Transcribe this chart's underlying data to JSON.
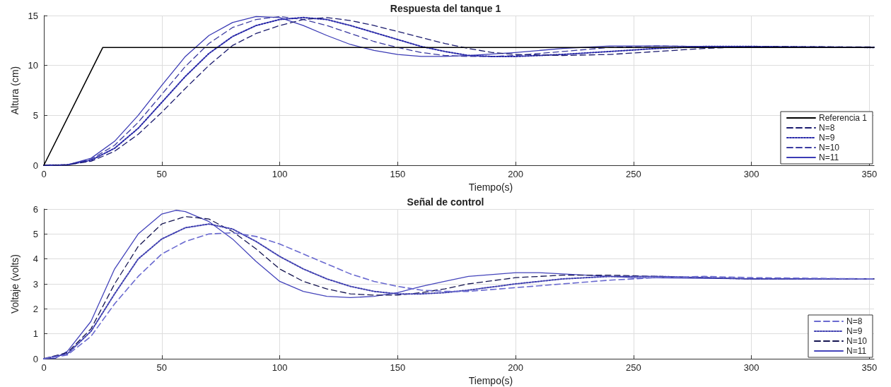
{
  "chart_data": [
    {
      "type": "line",
      "title": "Respuesta del tanque 1",
      "xlabel": "Tiempo(s)",
      "ylabel": "Altura (cm)",
      "xlim": [
        0,
        352
      ],
      "xticks": [
        0,
        50,
        100,
        150,
        200,
        250,
        300,
        350
      ],
      "ylim": [
        0,
        15
      ],
      "yticks": [
        0,
        5,
        10,
        15
      ],
      "grid": true,
      "legend": "bottom right",
      "marker": "none",
      "series": [
        {
          "name": "Referencia 1",
          "color": "#000000",
          "line_style": "solid",
          "x": [
            0,
            25,
            352
          ],
          "values": [
            0,
            11.8,
            11.8
          ]
        },
        {
          "name": "N=8",
          "color": "#1a1a6e",
          "line_style": "dashed",
          "x": [
            0,
            10,
            20,
            30,
            40,
            50,
            60,
            70,
            80,
            90,
            100,
            110,
            120,
            130,
            140,
            150,
            160,
            170,
            180,
            190,
            200,
            220,
            240,
            260,
            280,
            300,
            352
          ],
          "values": [
            0,
            0.03,
            0.4,
            1.4,
            3.1,
            5.3,
            7.7,
            10.0,
            12.0,
            13.2,
            14.0,
            14.6,
            14.8,
            14.5,
            14.0,
            13.4,
            12.8,
            12.2,
            11.7,
            11.3,
            11.1,
            11.0,
            11.1,
            11.4,
            11.7,
            11.9,
            11.85
          ]
        },
        {
          "name": "N=9",
          "color": "#2828a8",
          "line_style": "dotted",
          "x": [
            0,
            10,
            20,
            30,
            40,
            50,
            60,
            70,
            80,
            90,
            100,
            110,
            120,
            130,
            140,
            150,
            160,
            170,
            180,
            190,
            200,
            220,
            240,
            260,
            280,
            300,
            352
          ],
          "values": [
            0,
            0.04,
            0.5,
            1.7,
            3.7,
            6.3,
            8.9,
            11.2,
            12.9,
            14.0,
            14.6,
            14.8,
            14.6,
            14.0,
            13.3,
            12.6,
            11.9,
            11.4,
            11.0,
            10.9,
            10.9,
            11.1,
            11.4,
            11.7,
            11.9,
            11.9,
            11.8
          ]
        },
        {
          "name": "N=10",
          "color": "#3a3aa0",
          "line_style": "dashed",
          "x": [
            0,
            10,
            20,
            30,
            40,
            50,
            60,
            70,
            80,
            90,
            100,
            110,
            120,
            130,
            140,
            150,
            160,
            170,
            180,
            190,
            200,
            220,
            240,
            260,
            280,
            300,
            352
          ],
          "values": [
            0,
            0.05,
            0.6,
            2.0,
            4.3,
            7.1,
            9.9,
            12.2,
            13.8,
            14.6,
            14.9,
            14.6,
            14.0,
            13.2,
            12.4,
            11.8,
            11.3,
            11.0,
            10.9,
            10.9,
            11.0,
            11.4,
            11.8,
            11.95,
            11.9,
            11.85,
            11.8
          ]
        },
        {
          "name": "N=11",
          "color": "#3b3bb5",
          "line_style": "solid",
          "x": [
            0,
            10,
            20,
            30,
            40,
            50,
            60,
            70,
            80,
            90,
            100,
            110,
            120,
            130,
            140,
            150,
            160,
            170,
            180,
            200,
            220,
            240,
            260,
            280,
            300,
            352
          ],
          "values": [
            0,
            0.05,
            0.7,
            2.4,
            5.0,
            8.0,
            10.9,
            13.0,
            14.3,
            14.9,
            14.8,
            14.0,
            13.0,
            12.1,
            11.5,
            11.1,
            10.9,
            10.9,
            11.0,
            11.3,
            11.7,
            11.95,
            11.95,
            11.9,
            11.85,
            11.8
          ]
        }
      ]
    },
    {
      "type": "line",
      "title": "Señal de control",
      "xlabel": "Tiempo(s)",
      "ylabel": "Voltaje (volts)",
      "xlim": [
        0,
        352
      ],
      "xticks": [
        0,
        50,
        100,
        150,
        200,
        250,
        300,
        350
      ],
      "ylim": [
        0,
        6
      ],
      "yticks": [
        0,
        1,
        2,
        3,
        4,
        5,
        6
      ],
      "grid": true,
      "legend": "bottom right",
      "marker": "none",
      "series": [
        {
          "name": "N=8",
          "color": "#6a6ad0",
          "line_style": "dashed",
          "x": [
            0,
            10,
            20,
            30,
            40,
            50,
            60,
            70,
            80,
            90,
            100,
            110,
            120,
            130,
            140,
            150,
            160,
            170,
            180,
            200,
            220,
            240,
            260,
            280,
            300,
            352
          ],
          "values": [
            0,
            0.15,
            0.9,
            2.2,
            3.3,
            4.2,
            4.7,
            5.0,
            5.05,
            4.9,
            4.6,
            4.2,
            3.8,
            3.4,
            3.1,
            2.9,
            2.75,
            2.7,
            2.7,
            2.85,
            3.0,
            3.15,
            3.25,
            3.3,
            3.25,
            3.2
          ]
        },
        {
          "name": "N=9",
          "color": "#4040b0",
          "line_style": "dotted",
          "x": [
            0,
            10,
            20,
            30,
            40,
            50,
            60,
            70,
            80,
            90,
            100,
            110,
            120,
            130,
            140,
            150,
            160,
            170,
            180,
            200,
            220,
            240,
            260,
            300,
            352
          ],
          "values": [
            0,
            0.2,
            1.1,
            2.6,
            4.0,
            4.8,
            5.25,
            5.4,
            5.2,
            4.7,
            4.1,
            3.6,
            3.2,
            2.9,
            2.7,
            2.6,
            2.6,
            2.65,
            2.75,
            3.0,
            3.2,
            3.3,
            3.3,
            3.2,
            3.2
          ]
        },
        {
          "name": "N=10",
          "color": "#141450",
          "line_style": "dashed",
          "x": [
            0,
            10,
            20,
            30,
            40,
            50,
            60,
            70,
            80,
            90,
            100,
            110,
            120,
            130,
            140,
            150,
            160,
            170,
            180,
            200,
            220,
            240,
            260,
            300,
            352
          ],
          "values": [
            0,
            0.25,
            1.2,
            3.0,
            4.5,
            5.4,
            5.7,
            5.6,
            5.1,
            4.4,
            3.6,
            3.1,
            2.8,
            2.6,
            2.55,
            2.55,
            2.65,
            2.8,
            3.0,
            3.25,
            3.35,
            3.35,
            3.3,
            3.2,
            3.2
          ]
        },
        {
          "name": "N=11",
          "color": "#4444bb",
          "line_style": "solid",
          "x": [
            0,
            5,
            10,
            20,
            30,
            40,
            50,
            56,
            60,
            70,
            80,
            90,
            100,
            110,
            120,
            130,
            140,
            150,
            160,
            170,
            180,
            200,
            210,
            230,
            250,
            300,
            352
          ],
          "values": [
            0,
            0.02,
            0.3,
            1.5,
            3.6,
            5.0,
            5.8,
            5.95,
            5.9,
            5.5,
            4.8,
            3.9,
            3.1,
            2.7,
            2.5,
            2.45,
            2.5,
            2.65,
            2.9,
            3.1,
            3.3,
            3.45,
            3.45,
            3.35,
            3.25,
            3.2,
            3.2
          ]
        }
      ]
    }
  ]
}
